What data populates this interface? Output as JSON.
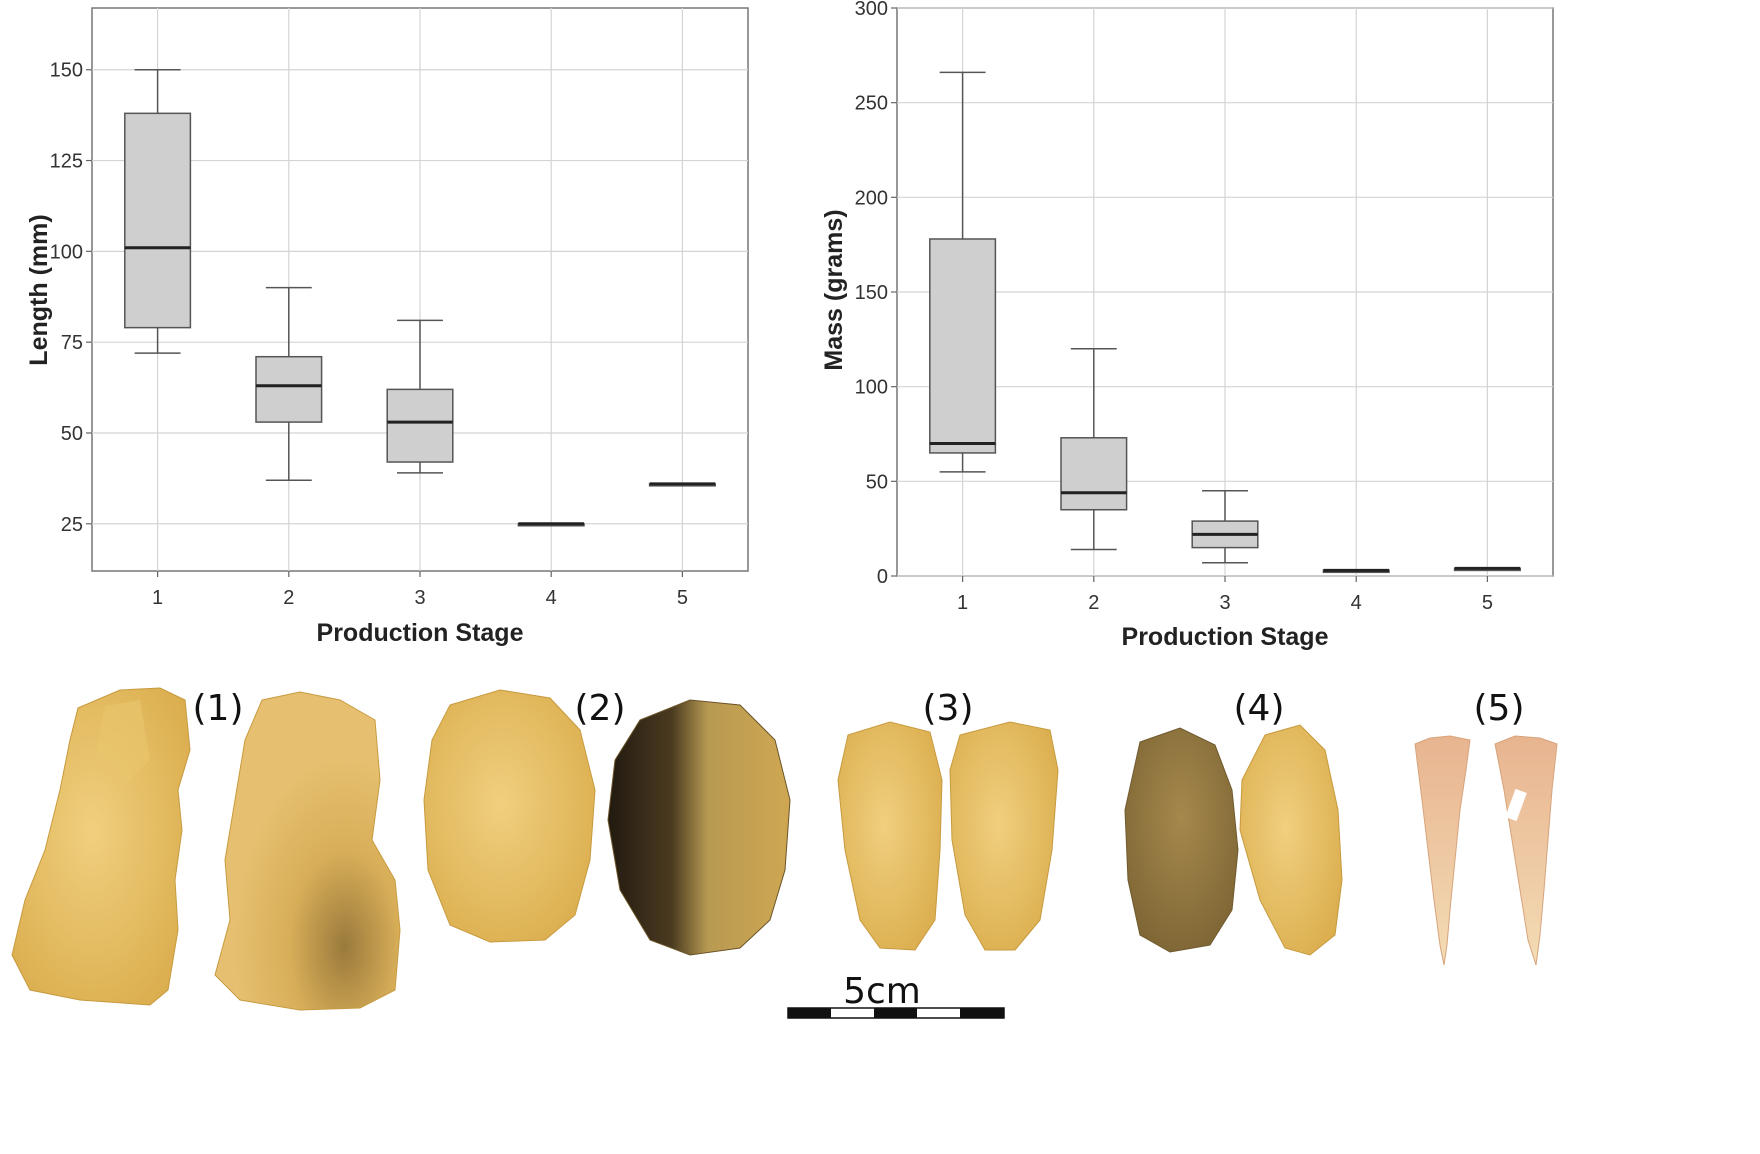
{
  "chart_data": [
    {
      "type": "box",
      "xlabel": "Production Stage",
      "ylabel": "Length (mm)",
      "ylim": [
        12,
        167
      ],
      "yticks": [
        25,
        50,
        75,
        100,
        125,
        150
      ],
      "categories": [
        "1",
        "2",
        "3",
        "4",
        "5"
      ],
      "boxes": [
        {
          "stage": "1",
          "min": 72,
          "q1": 79,
          "median": 101,
          "q3": 138,
          "max": 150
        },
        {
          "stage": "2",
          "min": 37,
          "q1": 53,
          "median": 63,
          "q3": 71,
          "max": 90
        },
        {
          "stage": "3",
          "min": 39,
          "q1": 42,
          "median": 53,
          "q3": 62,
          "max": 81
        },
        {
          "stage": "4",
          "min": 25,
          "q1": 25,
          "median": 25,
          "q3": 25,
          "max": 25
        },
        {
          "stage": "5",
          "min": 36,
          "q1": 36,
          "median": 36,
          "q3": 36,
          "max": 36
        }
      ],
      "grid": true
    },
    {
      "type": "box",
      "xlabel": "Production Stage",
      "ylabel": "Mass (grams)",
      "ylim": [
        0,
        300
      ],
      "yticks": [
        0,
        50,
        100,
        150,
        200,
        250,
        300
      ],
      "categories": [
        "1",
        "2",
        "3",
        "4",
        "5"
      ],
      "boxes": [
        {
          "stage": "1",
          "min": 55,
          "q1": 65,
          "median": 70,
          "q3": 178,
          "max": 266
        },
        {
          "stage": "2",
          "min": 14,
          "q1": 35,
          "median": 44,
          "q3": 73,
          "max": 120
        },
        {
          "stage": "3",
          "min": 7,
          "q1": 15,
          "median": 22,
          "q3": 29,
          "max": 45
        },
        {
          "stage": "4",
          "min": 3,
          "q1": 3,
          "median": 3,
          "q3": 3,
          "max": 3
        },
        {
          "stage": "5",
          "min": 4,
          "q1": 4,
          "median": 4,
          "q3": 4,
          "max": 4
        }
      ],
      "grid": true
    }
  ],
  "figure_labels": [
    "(1)",
    "(2)",
    "(3)",
    "(4)",
    "(5)"
  ],
  "scale_bar_label": "5cm",
  "colors": {
    "box_fill": "#cfcfcf",
    "box_stroke": "#555555",
    "grid": "#d4d4d4",
    "artifact_main": "#e2b85a",
    "artifact_light": "#efd08a",
    "artifact_dark": "#2f2416",
    "point_fill": "#e9c9a6"
  }
}
